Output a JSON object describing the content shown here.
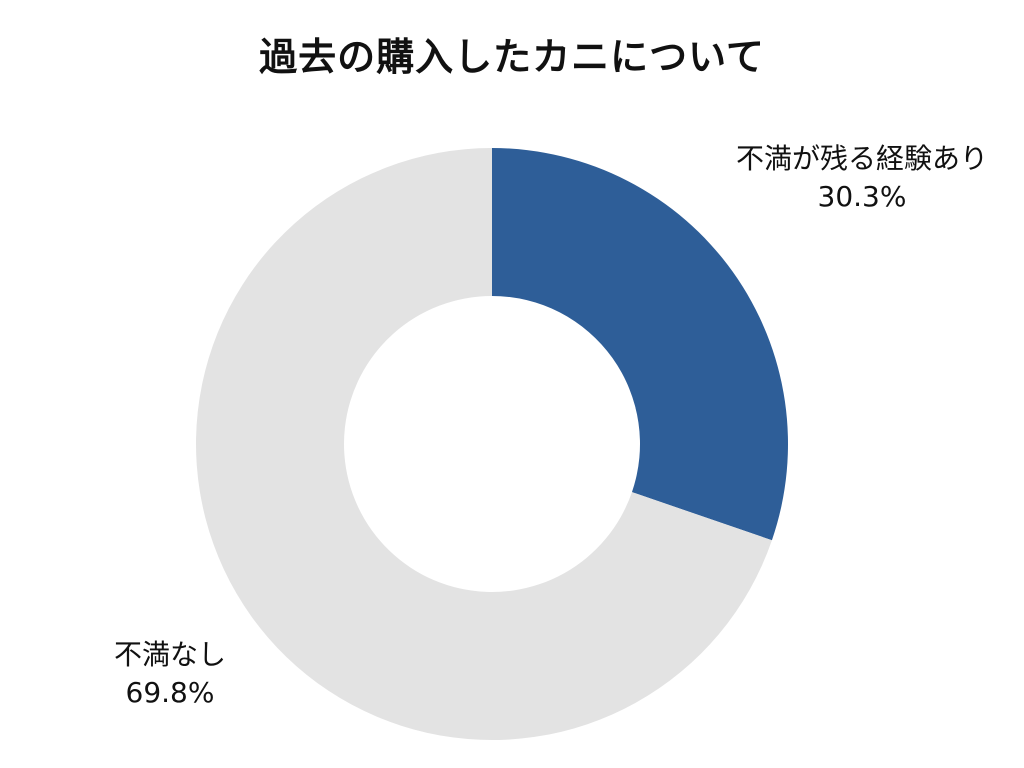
{
  "chart_data": {
    "type": "pie",
    "title": "過去の購入したカニについて",
    "style": "donut",
    "start": "12 o'clock, clockwise",
    "slices": [
      {
        "label": "不満が残る経験あり",
        "value": 30.3,
        "value_label": "30.3%",
        "color": "#2e5e98"
      },
      {
        "label": "不満なし",
        "value": 69.8,
        "value_label": "69.8%",
        "color": "#e3e3e3"
      }
    ],
    "legend": "none",
    "data_labels": "outside"
  }
}
